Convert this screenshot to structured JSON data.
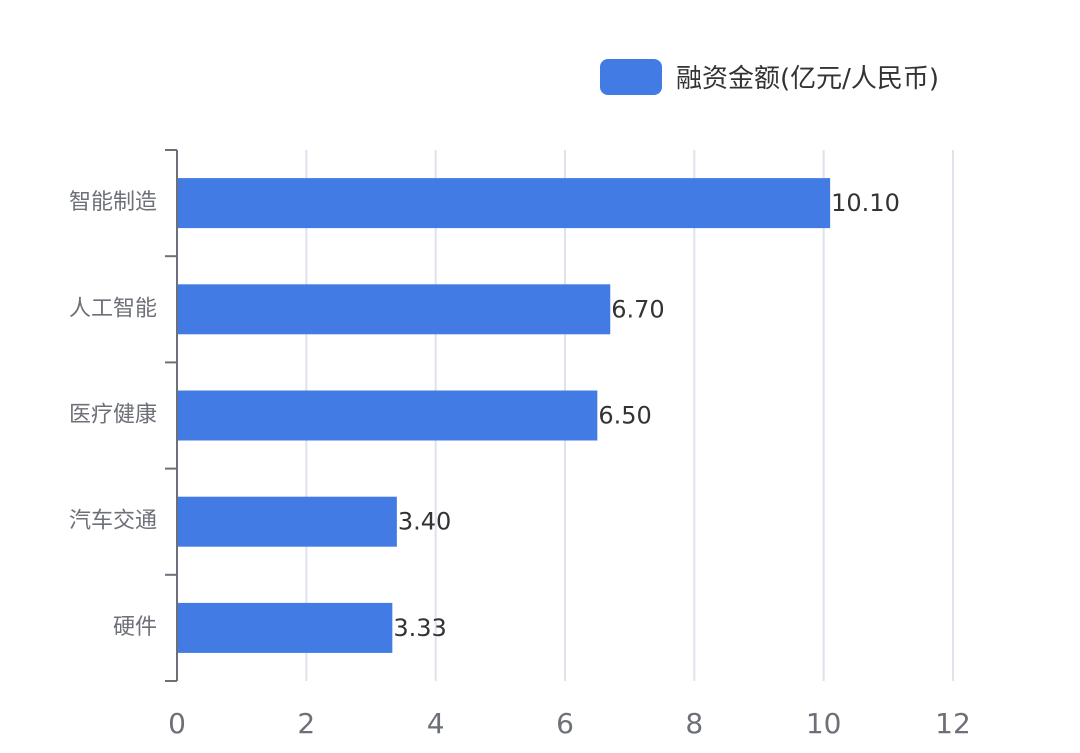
{
  "chart_data": {
    "type": "bar",
    "orientation": "horizontal",
    "categories": [
      "智能制造",
      "人工智能",
      "医疗健康",
      "汽车交通",
      "硬件"
    ],
    "series": [
      {
        "name": "融资金额(亿元/人民币)",
        "values": [
          10.1,
          6.7,
          6.5,
          3.4,
          3.33
        ],
        "color": "#437be4"
      }
    ],
    "data_labels": [
      "10.10",
      "6.70",
      "6.50",
      "3.40",
      "3.33"
    ],
    "xlim": [
      0,
      12
    ],
    "x_ticks": [
      0,
      2,
      4,
      6,
      8,
      10,
      12
    ],
    "grid": true,
    "legend_position": "top-right",
    "xlabel": "",
    "ylabel": "",
    "title": ""
  }
}
